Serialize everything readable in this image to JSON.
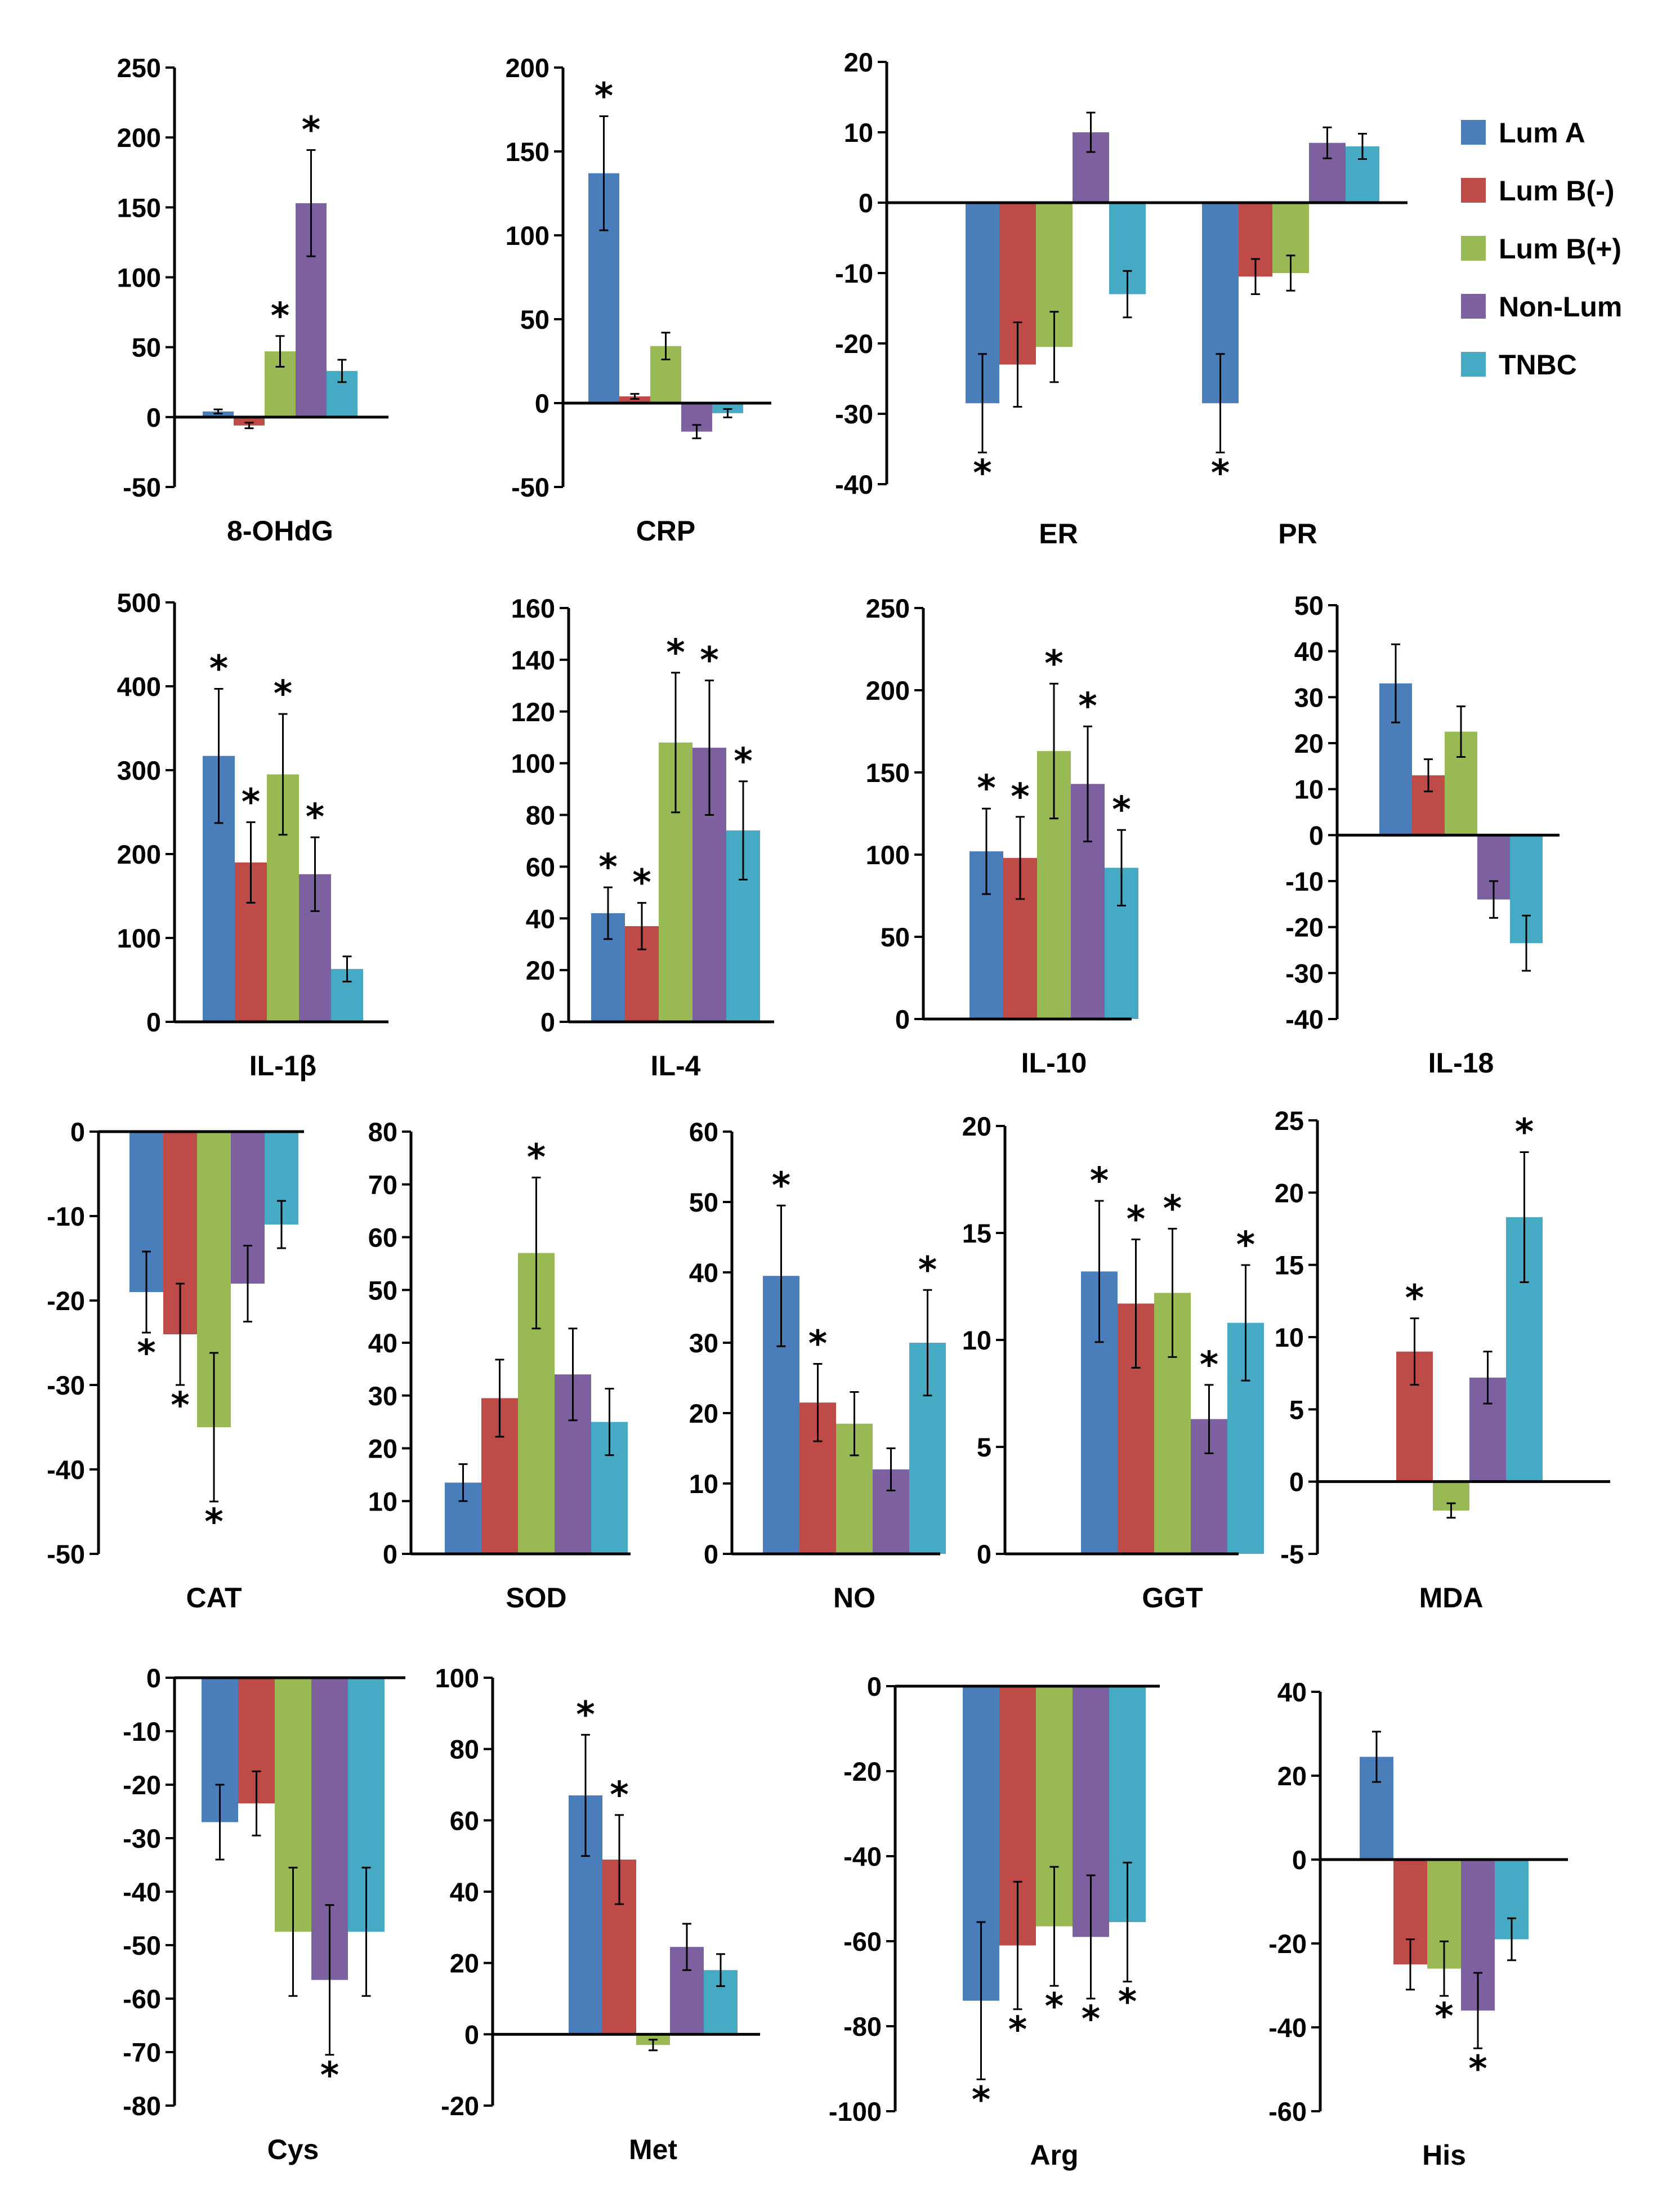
{
  "legend": {
    "entries": [
      {
        "label": "Lum A",
        "color": "#4a7ebb"
      },
      {
        "label": "Lum B(-)",
        "color": "#be4b48"
      },
      {
        "label": "Lum B(+)",
        "color": "#98b954"
      },
      {
        "label": "Non-Lum",
        "color": "#7d60a0"
      },
      {
        "label": "TNBC",
        "color": "#46aac5"
      }
    ]
  },
  "chart_data": [
    {
      "type": "bar",
      "title": "8-OHdG",
      "xlabel": "8-OHdG",
      "ylim": [
        -50,
        250
      ],
      "yticks": [
        -50,
        0,
        50,
        100,
        150,
        200,
        250
      ],
      "series": [
        {
          "name": "Lum A",
          "values": [
            4
          ]
        },
        {
          "name": "Lum B(-)",
          "values": [
            -6
          ]
        },
        {
          "name": "Lum B(+)",
          "values": [
            47
          ]
        },
        {
          "name": "Non-Lum",
          "values": [
            153
          ]
        },
        {
          "name": "TNBC",
          "values": [
            33
          ]
        }
      ],
      "errors": [
        1.5,
        2,
        11,
        38,
        8
      ],
      "significant": [
        false,
        false,
        true,
        true,
        false
      ]
    },
    {
      "type": "bar",
      "title": "CRP",
      "xlabel": "CRP",
      "ylim": [
        -50,
        200
      ],
      "yticks": [
        -50,
        0,
        50,
        100,
        150,
        200
      ],
      "series": [
        {
          "name": "Lum A",
          "values": [
            137
          ]
        },
        {
          "name": "Lum B(-)",
          "values": [
            4
          ]
        },
        {
          "name": "Lum B(+)",
          "values": [
            34
          ]
        },
        {
          "name": "Non-Lum",
          "values": [
            -17
          ]
        },
        {
          "name": "TNBC",
          "values": [
            -6
          ]
        }
      ],
      "errors": [
        34,
        1.5,
        8,
        4,
        2.5
      ],
      "significant": [
        true,
        false,
        false,
        false,
        false
      ]
    },
    {
      "type": "bar",
      "title": "ER / PR",
      "xlabel": "",
      "categories": [
        "ER",
        "PR"
      ],
      "ylim": [
        -40,
        20
      ],
      "yticks": [
        -40,
        -30,
        -20,
        -10,
        0,
        10,
        20
      ],
      "series": [
        {
          "name": "Lum A",
          "values": [
            -28.5,
            -28.5
          ]
        },
        {
          "name": "Lum B(-)",
          "values": [
            -23,
            -10.5
          ]
        },
        {
          "name": "Lum B(+)",
          "values": [
            -20.5,
            -10
          ]
        },
        {
          "name": "Non-Lum",
          "values": [
            10,
            8.5
          ]
        },
        {
          "name": "TNBC",
          "values": [
            -13,
            8
          ]
        }
      ],
      "errors": [
        [
          7,
          7
        ],
        [
          6,
          2.5
        ],
        [
          5,
          2.5
        ],
        [
          2.8,
          2.2
        ],
        [
          3.3,
          1.8
        ]
      ],
      "significant": [
        [
          true,
          true
        ],
        [
          false,
          false
        ],
        [
          false,
          false
        ],
        [
          false,
          false
        ],
        [
          false,
          false
        ]
      ]
    },
    {
      "type": "bar",
      "title": "IL-1β",
      "xlabel": "IL-1β",
      "ylim": [
        0,
        500
      ],
      "yticks": [
        0,
        100,
        200,
        300,
        400,
        500
      ],
      "series": [
        {
          "name": "Lum A",
          "values": [
            317
          ]
        },
        {
          "name": "Lum B(-)",
          "values": [
            190
          ]
        },
        {
          "name": "Lum B(+)",
          "values": [
            295
          ]
        },
        {
          "name": "Non-Lum",
          "values": [
            176
          ]
        },
        {
          "name": "TNBC",
          "values": [
            63
          ]
        }
      ],
      "errors": [
        80,
        48,
        72,
        44,
        15
      ],
      "significant": [
        true,
        true,
        true,
        true,
        false
      ]
    },
    {
      "type": "bar",
      "title": "IL-4",
      "xlabel": "IL-4",
      "ylim": [
        0,
        160
      ],
      "yticks": [
        0,
        20,
        40,
        60,
        80,
        100,
        120,
        140,
        160
      ],
      "series": [
        {
          "name": "Lum A",
          "values": [
            42
          ]
        },
        {
          "name": "Lum B(-)",
          "values": [
            37
          ]
        },
        {
          "name": "Lum B(+)",
          "values": [
            108
          ]
        },
        {
          "name": "Non-Lum",
          "values": [
            106
          ]
        },
        {
          "name": "TNBC",
          "values": [
            74
          ]
        }
      ],
      "errors": [
        10,
        9,
        27,
        26,
        19
      ],
      "significant": [
        true,
        true,
        true,
        true,
        true
      ]
    },
    {
      "type": "bar",
      "title": "IL-10",
      "xlabel": "IL-10",
      "ylim": [
        0,
        250
      ],
      "yticks": [
        0,
        50,
        100,
        150,
        200,
        250
      ],
      "series": [
        {
          "name": "Lum A",
          "values": [
            102
          ]
        },
        {
          "name": "Lum B(-)",
          "values": [
            98
          ]
        },
        {
          "name": "Lum B(+)",
          "values": [
            163
          ]
        },
        {
          "name": "Non-Lum",
          "values": [
            143
          ]
        },
        {
          "name": "TNBC",
          "values": [
            92
          ]
        }
      ],
      "errors": [
        26,
        25,
        41,
        35,
        23
      ],
      "significant": [
        true,
        true,
        true,
        true,
        true
      ]
    },
    {
      "type": "bar",
      "title": "IL-18",
      "xlabel": "IL-18",
      "ylim": [
        -40,
        50
      ],
      "yticks": [
        -40,
        -30,
        -20,
        -10,
        0,
        10,
        20,
        30,
        40,
        50
      ],
      "series": [
        {
          "name": "Lum A",
          "values": [
            33
          ]
        },
        {
          "name": "Lum B(-)",
          "values": [
            13
          ]
        },
        {
          "name": "Lum B(+)",
          "values": [
            22.5
          ]
        },
        {
          "name": "Non-Lum",
          "values": [
            -14
          ]
        },
        {
          "name": "TNBC",
          "values": [
            -23.5
          ]
        }
      ],
      "errors": [
        8.5,
        3.5,
        5.5,
        4,
        6
      ],
      "significant": [
        false,
        false,
        false,
        false,
        false
      ]
    },
    {
      "type": "bar",
      "title": "CAT",
      "xlabel": "CAT",
      "ylim": [
        -50,
        0
      ],
      "yticks": [
        -50,
        -40,
        -30,
        -20,
        -10,
        0
      ],
      "series": [
        {
          "name": "Lum A",
          "values": [
            -19
          ]
        },
        {
          "name": "Lum B(-)",
          "values": [
            -24
          ]
        },
        {
          "name": "Lum B(+)",
          "values": [
            -35
          ]
        },
        {
          "name": "Non-Lum",
          "values": [
            -18
          ]
        },
        {
          "name": "TNBC",
          "values": [
            -11
          ]
        }
      ],
      "errors": [
        4.8,
        6,
        8.8,
        4.5,
        2.8
      ],
      "significant": [
        true,
        true,
        true,
        false,
        false
      ]
    },
    {
      "type": "bar",
      "title": "SOD",
      "xlabel": "SOD",
      "ylim": [
        0,
        80
      ],
      "yticks": [
        0,
        10,
        20,
        30,
        40,
        50,
        60,
        70,
        80
      ],
      "series": [
        {
          "name": "Lum A",
          "values": [
            13.5
          ]
        },
        {
          "name": "Lum B(-)",
          "values": [
            29.5
          ]
        },
        {
          "name": "Lum B(+)",
          "values": [
            57
          ]
        },
        {
          "name": "Non-Lum",
          "values": [
            34
          ]
        },
        {
          "name": "TNBC",
          "values": [
            25
          ]
        }
      ],
      "errors": [
        3.5,
        7.3,
        14.3,
        8.7,
        6.3
      ],
      "significant": [
        false,
        false,
        true,
        false,
        false
      ]
    },
    {
      "type": "bar",
      "title": "NO",
      "xlabel": "NO",
      "ylim": [
        0,
        60
      ],
      "yticks": [
        0,
        10,
        20,
        30,
        40,
        50,
        60
      ],
      "series": [
        {
          "name": "Lum A",
          "values": [
            39.5
          ]
        },
        {
          "name": "Lum B(-)",
          "values": [
            21.5
          ]
        },
        {
          "name": "Lum B(+)",
          "values": [
            18.5
          ]
        },
        {
          "name": "Non-Lum",
          "values": [
            12
          ]
        },
        {
          "name": "TNBC",
          "values": [
            30
          ]
        }
      ],
      "errors": [
        10,
        5.5,
        4.5,
        3,
        7.5
      ],
      "significant": [
        true,
        true,
        false,
        false,
        true
      ]
    },
    {
      "type": "bar",
      "title": "GGT",
      "xlabel": "GGT",
      "ylim": [
        0,
        20
      ],
      "yticks": [
        0,
        5,
        10,
        15,
        20
      ],
      "series": [
        {
          "name": "Lum A",
          "values": [
            13.2
          ]
        },
        {
          "name": "Lum B(-)",
          "values": [
            11.7
          ]
        },
        {
          "name": "Lum B(+)",
          "values": [
            12.2
          ]
        },
        {
          "name": "Non-Lum",
          "values": [
            6.3
          ]
        },
        {
          "name": "TNBC",
          "values": [
            10.8
          ]
        }
      ],
      "errors": [
        3.3,
        3,
        3,
        1.6,
        2.7
      ],
      "significant": [
        true,
        true,
        true,
        true,
        true
      ]
    },
    {
      "type": "bar",
      "title": "MDA",
      "xlabel": "MDA",
      "ylim": [
        -5,
        25
      ],
      "yticks": [
        -5,
        0,
        5,
        10,
        15,
        20,
        25
      ],
      "series": [
        {
          "name": "Lum A",
          "values": [
            0
          ]
        },
        {
          "name": "Lum B(-)",
          "values": [
            9
          ]
        },
        {
          "name": "Lum B(+)",
          "values": [
            -2
          ]
        },
        {
          "name": "Non-Lum",
          "values": [
            7.2
          ]
        },
        {
          "name": "TNBC",
          "values": [
            18.3
          ]
        }
      ],
      "errors": [
        0,
        2.3,
        0.5,
        1.8,
        4.5
      ],
      "significant": [
        false,
        true,
        false,
        false,
        true
      ]
    },
    {
      "type": "bar",
      "title": "Cys",
      "xlabel": "Cys",
      "ylim": [
        -80,
        0
      ],
      "yticks": [
        -80,
        -70,
        -60,
        -50,
        -40,
        -30,
        -20,
        -10,
        0
      ],
      "series": [
        {
          "name": "Lum A",
          "values": [
            -27
          ]
        },
        {
          "name": "Lum B(-)",
          "values": [
            -23.5
          ]
        },
        {
          "name": "Lum B(+)",
          "values": [
            -47.5
          ]
        },
        {
          "name": "Non-Lum",
          "values": [
            -56.5
          ]
        },
        {
          "name": "TNBC",
          "values": [
            -47.5
          ]
        }
      ],
      "errors": [
        7,
        6,
        12,
        14,
        12
      ],
      "significant": [
        false,
        false,
        false,
        true,
        false
      ]
    },
    {
      "type": "bar",
      "title": "Met",
      "xlabel": "Met",
      "ylim": [
        -20,
        100
      ],
      "yticks": [
        -20,
        0,
        20,
        40,
        60,
        80,
        100
      ],
      "series": [
        {
          "name": "Lum A",
          "values": [
            67
          ]
        },
        {
          "name": "Lum B(-)",
          "values": [
            49
          ]
        },
        {
          "name": "Lum B(+)",
          "values": [
            -3
          ]
        },
        {
          "name": "Non-Lum",
          "values": [
            24.5
          ]
        },
        {
          "name": "TNBC",
          "values": [
            18
          ]
        }
      ],
      "errors": [
        17,
        12.5,
        1.5,
        6.5,
        4.5
      ],
      "significant": [
        true,
        true,
        false,
        false,
        false
      ]
    },
    {
      "type": "bar",
      "title": "Arg",
      "xlabel": "Arg",
      "ylim": [
        -100,
        0
      ],
      "yticks": [
        -100,
        -80,
        -60,
        -40,
        -20,
        0
      ],
      "series": [
        {
          "name": "Lum A",
          "values": [
            -74
          ]
        },
        {
          "name": "Lum B(-)",
          "values": [
            -61
          ]
        },
        {
          "name": "Lum B(+)",
          "values": [
            -56.5
          ]
        },
        {
          "name": "Non-Lum",
          "values": [
            -59
          ]
        },
        {
          "name": "TNBC",
          "values": [
            -55.5
          ]
        }
      ],
      "errors": [
        18.5,
        15,
        14,
        14.5,
        14
      ],
      "significant": [
        true,
        true,
        true,
        true,
        true
      ]
    },
    {
      "type": "bar",
      "title": "His",
      "xlabel": "His",
      "ylim": [
        -60,
        40
      ],
      "yticks": [
        -60,
        -40,
        -20,
        0,
        20,
        40
      ],
      "series": [
        {
          "name": "Lum A",
          "values": [
            24.5
          ]
        },
        {
          "name": "Lum B(-)",
          "values": [
            -25
          ]
        },
        {
          "name": "Lum B(+)",
          "values": [
            -26
          ]
        },
        {
          "name": "Non-Lum",
          "values": [
            -36
          ]
        },
        {
          "name": "TNBC",
          "values": [
            -19
          ]
        }
      ],
      "errors": [
        6,
        6,
        6.5,
        9,
        5
      ],
      "significant": [
        false,
        false,
        true,
        true,
        false
      ]
    }
  ]
}
